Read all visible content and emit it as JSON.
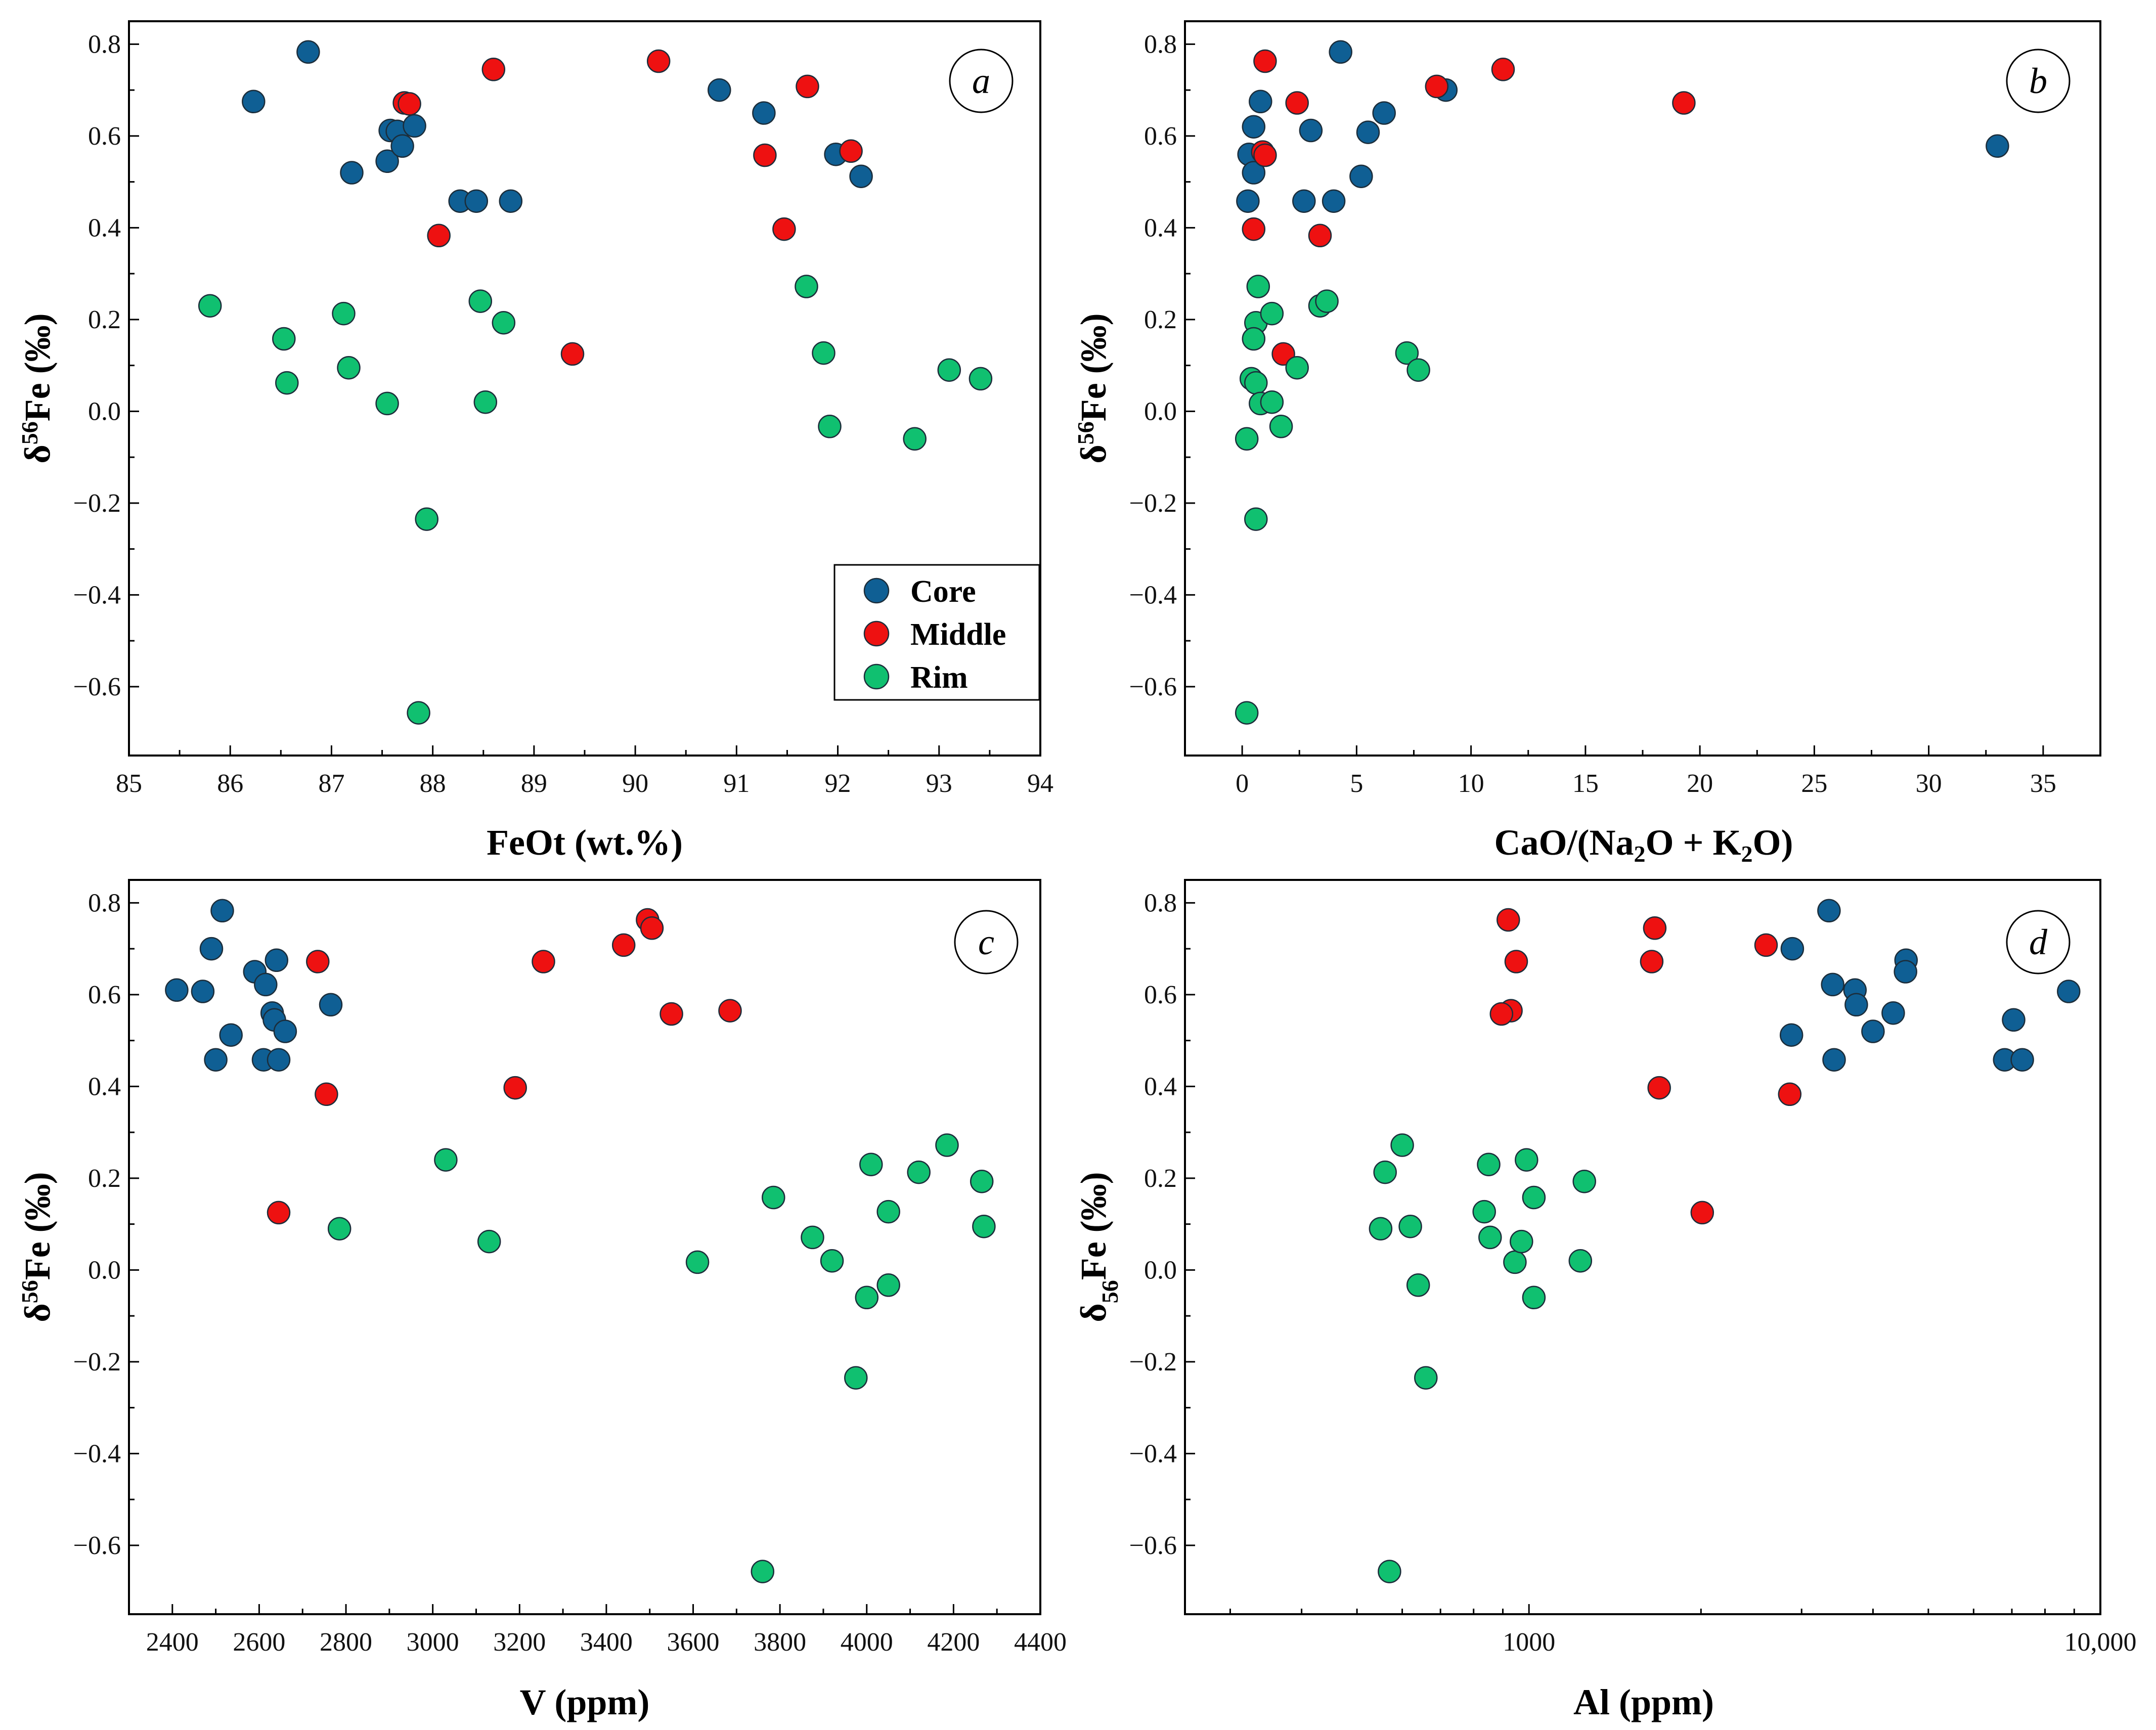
{
  "colors": {
    "Core": "#0f5f94",
    "Middle": "#ee1111",
    "Rim": "#10c070"
  },
  "legend": {
    "entries": [
      "Core",
      "Middle",
      "Rim"
    ]
  },
  "chart_data": [
    {
      "id": "a",
      "type": "scatter",
      "letter": "a",
      "xlabel": "FeOt (wt.%)",
      "ylabel": "δ56Fe (‰)",
      "xlim": [
        85,
        94
      ],
      "ylim": [
        -0.75,
        0.85
      ],
      "xticks": [
        85,
        86,
        87,
        88,
        89,
        90,
        91,
        92,
        93,
        94
      ],
      "xtick_labels": [
        "85",
        "86",
        "87",
        "88",
        "89",
        "90",
        "91",
        "92",
        "93",
        "94"
      ],
      "yticks": [
        -0.6,
        -0.4,
        -0.2,
        0.0,
        0.2,
        0.4,
        0.6,
        0.8
      ],
      "ytick_labels": [
        "−0.6",
        "−0.4",
        "−0.2",
        "0.0",
        "0.2",
        "0.4",
        "0.6",
        "0.8"
      ],
      "series": [
        {
          "name": "Core",
          "points": [
            [
              86.23,
              0.675
            ],
            [
              86.77,
              0.783
            ],
            [
              87.2,
              0.52
            ],
            [
              87.55,
              0.545
            ],
            [
              87.58,
              0.612
            ],
            [
              87.65,
              0.61
            ],
            [
              87.7,
              0.578
            ],
            [
              87.82,
              0.622
            ],
            [
              88.27,
              0.458
            ],
            [
              88.43,
              0.458
            ],
            [
              88.77,
              0.458
            ],
            [
              90.83,
              0.7
            ],
            [
              91.27,
              0.65
            ],
            [
              91.98,
              0.56
            ],
            [
              92.23,
              0.512
            ]
          ]
        },
        {
          "name": "Middle",
          "points": [
            [
              87.72,
              0.672
            ],
            [
              87.77,
              0.67
            ],
            [
              88.06,
              0.383
            ],
            [
              88.6,
              0.745
            ],
            [
              89.38,
              0.125
            ],
            [
              90.23,
              0.763
            ],
            [
              91.28,
              0.558
            ],
            [
              91.47,
              0.397
            ],
            [
              91.7,
              0.708
            ],
            [
              92.13,
              0.567
            ]
          ]
        },
        {
          "name": "Rim",
          "points": [
            [
              85.8,
              0.23
            ],
            [
              86.53,
              0.158
            ],
            [
              86.56,
              0.062
            ],
            [
              87.12,
              0.213
            ],
            [
              87.17,
              0.095
            ],
            [
              87.55,
              0.017
            ],
            [
              87.86,
              -0.657
            ],
            [
              87.94,
              -0.235
            ],
            [
              88.47,
              0.24
            ],
            [
              88.52,
              0.02
            ],
            [
              88.7,
              0.193
            ],
            [
              91.69,
              0.272
            ],
            [
              91.86,
              0.127
            ],
            [
              91.92,
              -0.033
            ],
            [
              92.76,
              -0.06
            ],
            [
              93.1,
              0.09
            ],
            [
              93.41,
              0.071
            ]
          ]
        }
      ]
    },
    {
      "id": "b",
      "type": "scatter",
      "letter": "b",
      "xlabel": "CaO/(Na2O + K2O)",
      "ylabel": "δ56Fe (‰)",
      "xlim": [
        -2.5,
        37.5
      ],
      "ylim": [
        -0.75,
        0.85
      ],
      "xticks": [
        0,
        5,
        10,
        15,
        20,
        25,
        30,
        35
      ],
      "xtick_labels": [
        "0",
        "5",
        "10",
        "15",
        "20",
        "25",
        "30",
        "35"
      ],
      "yticks": [
        -0.6,
        -0.4,
        -0.2,
        0.0,
        0.2,
        0.4,
        0.6,
        0.8
      ],
      "ytick_labels": [
        "−0.6",
        "−0.4",
        "−0.2",
        "0.0",
        "0.2",
        "0.4",
        "0.6",
        "0.8"
      ],
      "series": [
        {
          "name": "Core",
          "points": [
            [
              0.3,
              0.56
            ],
            [
              0.5,
              0.62
            ],
            [
              0.5,
              0.52
            ],
            [
              0.8,
              0.675
            ],
            [
              0.25,
              0.458
            ],
            [
              3.0,
              0.612
            ],
            [
              2.7,
              0.458
            ],
            [
              4.0,
              0.458
            ],
            [
              4.3,
              0.783
            ],
            [
              5.5,
              0.608
            ],
            [
              6.2,
              0.65
            ],
            [
              5.2,
              0.512
            ],
            [
              8.9,
              0.7
            ],
            [
              33.0,
              0.578
            ]
          ]
        },
        {
          "name": "Middle",
          "points": [
            [
              1.0,
              0.763
            ],
            [
              0.9,
              0.565
            ],
            [
              1.0,
              0.558
            ],
            [
              0.5,
              0.397
            ],
            [
              2.4,
              0.672
            ],
            [
              3.4,
              0.383
            ],
            [
              1.8,
              0.125
            ],
            [
              8.5,
              0.708
            ],
            [
              11.4,
              0.745
            ],
            [
              19.3,
              0.672
            ]
          ]
        },
        {
          "name": "Rim",
          "points": [
            [
              0.7,
              0.272
            ],
            [
              0.6,
              0.193
            ],
            [
              1.3,
              0.213
            ],
            [
              0.5,
              0.158
            ],
            [
              3.4,
              0.23
            ],
            [
              3.7,
              0.24
            ],
            [
              0.4,
              0.071
            ],
            [
              0.6,
              0.062
            ],
            [
              2.4,
              0.095
            ],
            [
              0.8,
              0.017
            ],
            [
              1.3,
              0.02
            ],
            [
              1.7,
              -0.033
            ],
            [
              0.2,
              -0.06
            ],
            [
              0.6,
              -0.235
            ],
            [
              7.2,
              0.127
            ],
            [
              7.7,
              0.09
            ],
            [
              0.2,
              -0.657
            ]
          ]
        }
      ]
    },
    {
      "id": "c",
      "type": "scatter",
      "letter": "c",
      "xlabel": "V (ppm)",
      "ylabel": "δ56Fe (‰)",
      "xlim": [
        2300,
        4400
      ],
      "ylim": [
        -0.75,
        0.85
      ],
      "xticks": [
        2400,
        2600,
        2800,
        3000,
        3200,
        3400,
        3600,
        3800,
        4000,
        4200,
        4400
      ],
      "xtick_labels": [
        "2400",
        "2600",
        "2800",
        "3000",
        "3200",
        "3400",
        "3600",
        "3800",
        "4000",
        "4200",
        "4400"
      ],
      "yticks": [
        -0.6,
        -0.4,
        -0.2,
        0.0,
        0.2,
        0.4,
        0.6,
        0.8
      ],
      "ytick_labels": [
        "−0.6",
        "−0.4",
        "−0.2",
        "0.0",
        "0.2",
        "0.4",
        "0.6",
        "0.8"
      ],
      "series": [
        {
          "name": "Core",
          "points": [
            [
              2410,
              0.61
            ],
            [
              2470,
              0.607
            ],
            [
              2490,
              0.7
            ],
            [
              2500,
              0.458
            ],
            [
              2515,
              0.783
            ],
            [
              2535,
              0.512
            ],
            [
              2590,
              0.65
            ],
            [
              2610,
              0.458
            ],
            [
              2615,
              0.622
            ],
            [
              2630,
              0.56
            ],
            [
              2635,
              0.545
            ],
            [
              2640,
              0.675
            ],
            [
              2645,
              0.458
            ],
            [
              2660,
              0.52
            ],
            [
              2765,
              0.578
            ]
          ]
        },
        {
          "name": "Middle",
          "points": [
            [
              2645,
              0.125
            ],
            [
              2735,
              0.672
            ],
            [
              2755,
              0.383
            ],
            [
              3190,
              0.397
            ],
            [
              3255,
              0.672
            ],
            [
              3440,
              0.708
            ],
            [
              3495,
              0.763
            ],
            [
              3505,
              0.745
            ],
            [
              3550,
              0.558
            ],
            [
              3685,
              0.565
            ]
          ]
        },
        {
          "name": "Rim",
          "points": [
            [
              2785,
              0.09
            ],
            [
              3030,
              0.24
            ],
            [
              3130,
              0.062
            ],
            [
              3610,
              0.017
            ],
            [
              3760,
              -0.657
            ],
            [
              3785,
              0.158
            ],
            [
              3875,
              0.071
            ],
            [
              3920,
              0.02
            ],
            [
              3975,
              -0.235
            ],
            [
              4000,
              -0.06
            ],
            [
              4010,
              0.23
            ],
            [
              4050,
              0.127
            ],
            [
              4050,
              -0.033
            ],
            [
              4120,
              0.213
            ],
            [
              4185,
              0.272
            ],
            [
              4265,
              0.193
            ],
            [
              4270,
              0.095
            ]
          ]
        }
      ]
    },
    {
      "id": "d",
      "type": "scatter",
      "letter": "d",
      "xscale": "log",
      "xlabel": "Al (ppm)",
      "ylabel": "δ56Fe (‰)",
      "xlim": [
        250,
        10000
      ],
      "ylim": [
        -0.75,
        0.85
      ],
      "xticks": [
        1000,
        10000
      ],
      "xtick_labels": [
        "1000",
        "10,000"
      ],
      "yticks": [
        -0.6,
        -0.4,
        -0.2,
        0.0,
        0.2,
        0.4,
        0.6,
        0.8
      ],
      "ytick_labels": [
        "−0.6",
        "−0.4",
        "−0.2",
        "0.0",
        "0.2",
        "0.4",
        "0.6",
        "0.8"
      ],
      "series": [
        {
          "name": "Core",
          "points": [
            [
              2890,
              0.7
            ],
            [
              2880,
              0.512
            ],
            [
              3350,
              0.783
            ],
            [
              3400,
              0.622
            ],
            [
              3420,
              0.458
            ],
            [
              3720,
              0.61
            ],
            [
              3740,
              0.578
            ],
            [
              4000,
              0.52
            ],
            [
              4340,
              0.56
            ],
            [
              4570,
              0.675
            ],
            [
              4560,
              0.65
            ],
            [
              6800,
              0.458
            ],
            [
              7050,
              0.545
            ],
            [
              7300,
              0.458
            ],
            [
              8800,
              0.607
            ]
          ]
        },
        {
          "name": "Middle",
          "points": [
            [
              920,
              0.763
            ],
            [
              950,
              0.672
            ],
            [
              930,
              0.565
            ],
            [
              895,
              0.558
            ],
            [
              1660,
              0.745
            ],
            [
              1640,
              0.672
            ],
            [
              1690,
              0.397
            ],
            [
              2010,
              0.125
            ],
            [
              2600,
              0.708
            ],
            [
              2860,
              0.383
            ]
          ]
        },
        {
          "name": "Rim",
          "points": [
            [
              560,
              0.213
            ],
            [
              600,
              0.272
            ],
            [
              550,
              0.09
            ],
            [
              620,
              0.095
            ],
            [
              640,
              -0.033
            ],
            [
              660,
              -0.235
            ],
            [
              570,
              -0.657
            ],
            [
              835,
              0.127
            ],
            [
              850,
              0.23
            ],
            [
              855,
              0.071
            ],
            [
              945,
              0.017
            ],
            [
              970,
              0.062
            ],
            [
              990,
              0.24
            ],
            [
              1020,
              0.158
            ],
            [
              1020,
              -0.06
            ],
            [
              1230,
              0.02
            ],
            [
              1250,
              0.193
            ]
          ]
        }
      ]
    }
  ]
}
